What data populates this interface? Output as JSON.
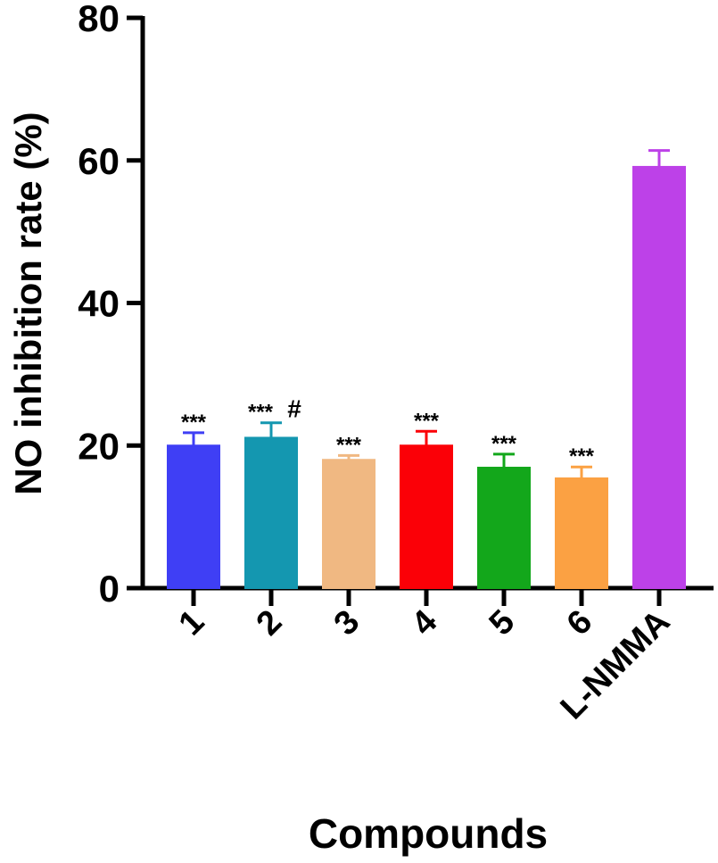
{
  "chart_data": {
    "type": "bar",
    "x_label": "Compounds",
    "y_label": "NO inhibition rate (%)",
    "categories": [
      "1",
      "2",
      "3",
      "4",
      "5",
      "6",
      "L-NMMA"
    ],
    "values": [
      20.0,
      21.1,
      18.0,
      20.0,
      16.9,
      15.4,
      59.1
    ],
    "errors": [
      1.8,
      2.1,
      0.6,
      2.0,
      1.9,
      1.6,
      2.3
    ],
    "colors": [
      "#3f3ff5",
      "#1497b0",
      "#f0b882",
      "#fb0007",
      "#13a71b",
      "#fba143",
      "#bd41e8"
    ],
    "significance": [
      "***",
      "***",
      "***",
      "***",
      "***",
      "***",
      null
    ],
    "markers": [
      null,
      "#",
      null,
      null,
      null,
      null,
      null
    ],
    "ylim": [
      0,
      80
    ],
    "yticks": [
      0,
      20,
      40,
      60,
      80
    ]
  }
}
